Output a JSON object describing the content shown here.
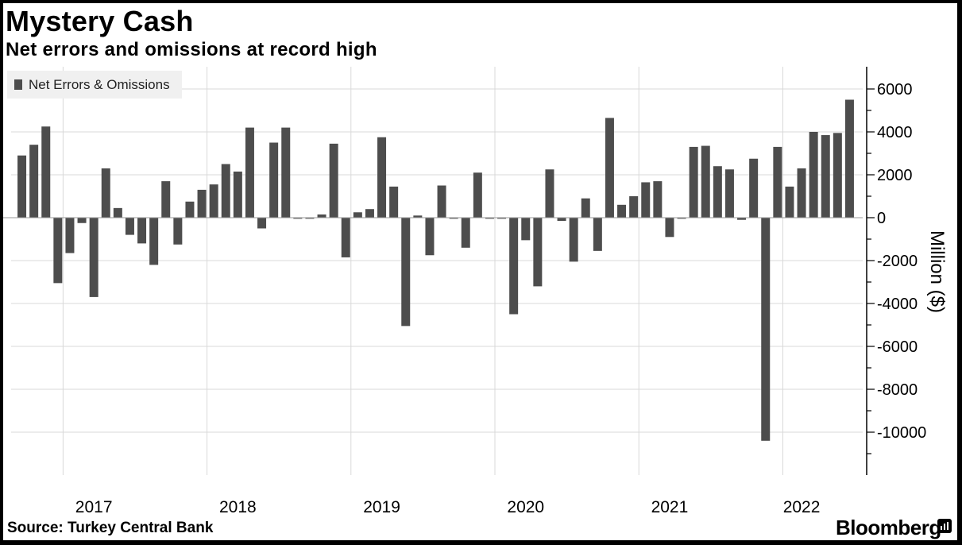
{
  "title": "Mystery Cash",
  "subtitle": "Net errors and omissions at record high",
  "source": "Source: Turkey Central Bank",
  "brand": "Bloomberg",
  "brand_icon": "bloomberg-terminal-icon",
  "colors": {
    "bar": "#4d4d4d",
    "grid": "#d9d9d9",
    "axis": "#000000",
    "background": "#ffffff"
  },
  "chart_data": {
    "type": "bar",
    "title": "Mystery Cash",
    "subtitle": "Net errors and omissions at record high",
    "xlabel": "",
    "ylabel": "Million ($)",
    "ylim": [
      -12000,
      7000
    ],
    "yticks": [
      6000,
      4000,
      2000,
      0,
      -2000,
      -4000,
      -6000,
      -8000,
      -10000
    ],
    "ytick_labels": [
      "6000",
      "4000",
      "2000",
      "0",
      "-2000",
      "-4000",
      "-6000",
      "-8000",
      "-10000"
    ],
    "x_start": "2016-09",
    "frequency": "monthly",
    "year_labels": [
      {
        "label": "2017",
        "month_index": 6
      },
      {
        "label": "2018",
        "month_index": 18
      },
      {
        "label": "2019",
        "month_index": 30
      },
      {
        "label": "2020",
        "month_index": 42
      },
      {
        "label": "2021",
        "month_index": 54
      },
      {
        "label": "2022",
        "month_index": 65
      }
    ],
    "year_boundaries": [
      4,
      16,
      28,
      40,
      52,
      64
    ],
    "legend": "top-left",
    "grid": true,
    "series": [
      {
        "name": "Net Errors & Omissions",
        "values": [
          2900,
          3400,
          4250,
          -3050,
          -1650,
          -250,
          -3700,
          2300,
          450,
          -800,
          -1200,
          -2200,
          1700,
          -1250,
          750,
          1300,
          1550,
          2500,
          2150,
          4200,
          -500,
          3500,
          4200,
          -50,
          -50,
          150,
          3450,
          -1850,
          250,
          400,
          3750,
          1450,
          -5050,
          100,
          -1750,
          1500,
          -50,
          -1400,
          2100,
          -50,
          -50,
          -4500,
          -1050,
          -3200,
          2250,
          -150,
          -2050,
          900,
          -1550,
          4650,
          600,
          1000,
          1650,
          1700,
          -900,
          -50,
          3300,
          3350,
          2400,
          2250,
          -100,
          2750,
          -10400,
          3300,
          1450,
          2300,
          4000,
          3850,
          3950,
          5500
        ]
      }
    ]
  }
}
